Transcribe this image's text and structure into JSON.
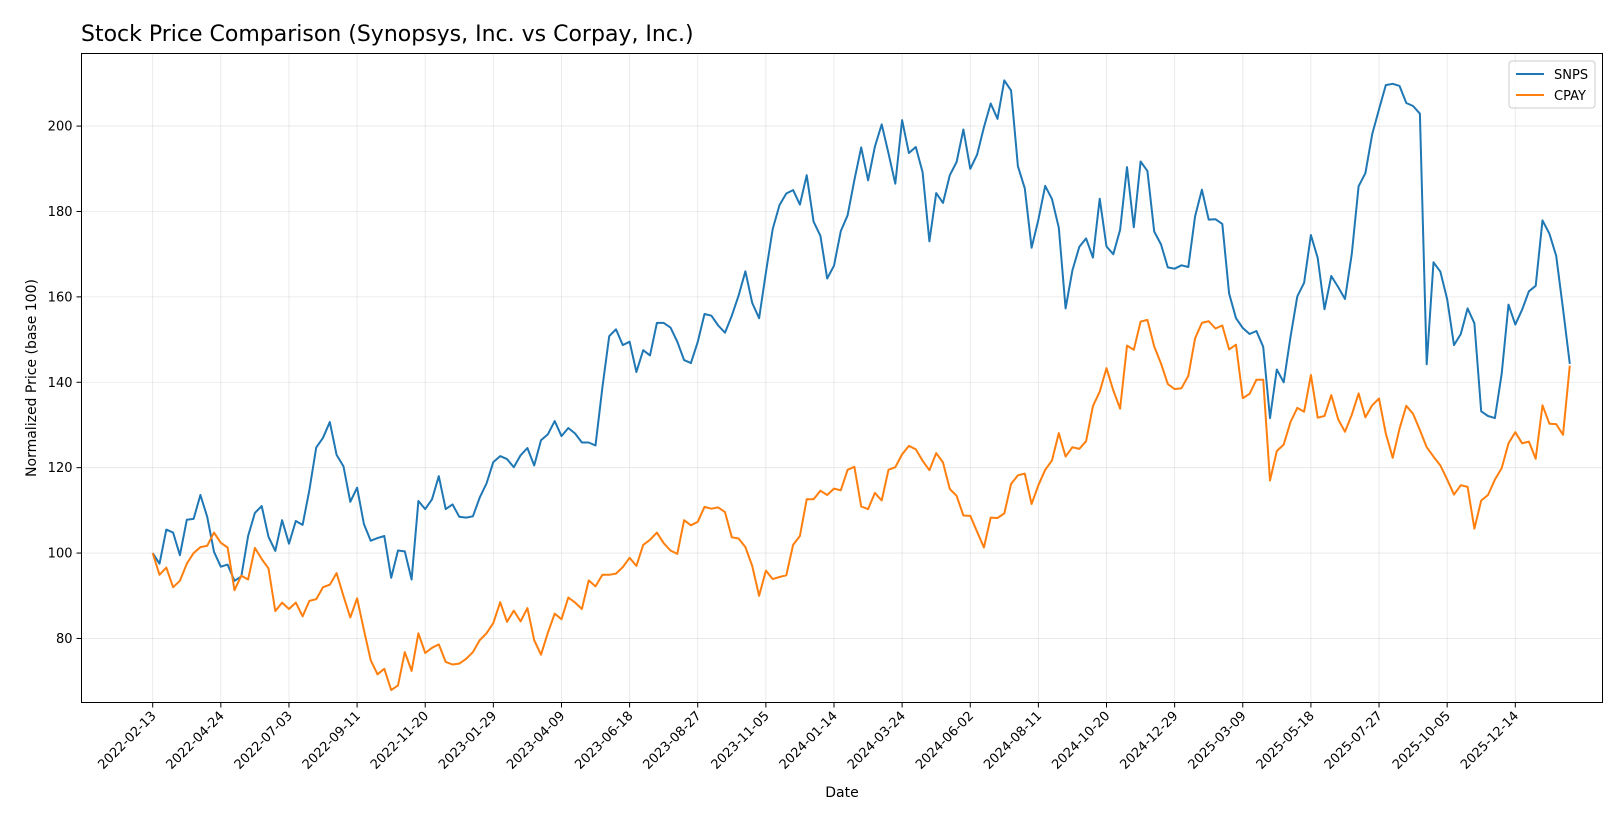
{
  "chart_data": {
    "type": "line",
    "title": "Stock Price Comparison (Synopsys, Inc. vs Corpay, Inc.)",
    "xlabel": "Date",
    "ylabel": "Normalized Price (base 100)",
    "x_ticks": [
      "2022-02-13",
      "2022-04-24",
      "2022-07-03",
      "2022-09-11",
      "2022-11-20",
      "2023-01-29",
      "2023-04-09",
      "2023-06-18",
      "2023-08-27",
      "2023-11-05",
      "2024-01-14",
      "2024-03-24",
      "2024-06-02",
      "2024-08-11",
      "2024-10-20",
      "2024-12-29",
      "2025-03-09",
      "2025-05-18",
      "2025-07-27",
      "2025-10-05",
      "2025-12-14"
    ],
    "y_ticks": [
      80,
      100,
      120,
      140,
      160,
      180,
      200
    ],
    "ylim": [
      65,
      217
    ],
    "x_range_weeks": [
      -10.45,
      212.8
    ],
    "grid": true,
    "legend_position": "top-right",
    "colors": {
      "SNPS": "#1f77b4",
      "CPAY": "#ff7f0e"
    },
    "series": [
      {
        "name": "SNPS",
        "color": "#1f77b4",
        "values": [
          100,
          97.5,
          105.5,
          104.8,
          99.5,
          107.8,
          108.0,
          113.6,
          108.5,
          100.3,
          96.8,
          97.3,
          93.5,
          94.5,
          104.0,
          109.4,
          111.0,
          103.8,
          100.5,
          107.7,
          102.2,
          107.5,
          106.6,
          114.8,
          124.7,
          127.0,
          130.7,
          123.0,
          120.3,
          112.0,
          115.3,
          106.8,
          102.9,
          103.5,
          104.0,
          94.2,
          100.6,
          100.4,
          93.8,
          112.2,
          110.3,
          112.6,
          118.0,
          110.3,
          111.4,
          108.5,
          108.3,
          108.6,
          113.0,
          116.3,
          121.3,
          122.7,
          122.0,
          120.1,
          122.9,
          124.6,
          120.5,
          126.4,
          127.8,
          130.9,
          127.4,
          129.3,
          128.0,
          125.9,
          125.9,
          125.2,
          138.8,
          150.8,
          152.4,
          148.7,
          149.5,
          142.4,
          147.5,
          146.3,
          153.9,
          153.9,
          152.8,
          149.5,
          145.2,
          144.5,
          149.4,
          156.0,
          155.6,
          153.3,
          151.6,
          155.6,
          160.3,
          166.0,
          158.6,
          155.0,
          165.7,
          175.9,
          181.5,
          184.2,
          185.0,
          181.6,
          188.5,
          177.6,
          174.3,
          164.3,
          167.3,
          175.4,
          179.1,
          187.4,
          195.0,
          187.3,
          195.2,
          200.4,
          193.6,
          186.5,
          201.4,
          193.7,
          195.1,
          189.2,
          173.0,
          184.3,
          182.0,
          188.5,
          191.6,
          199.2,
          190.0,
          193.3,
          199.7,
          205.3,
          201.7,
          210.7,
          208.3,
          190.6,
          185.4,
          171.5,
          178.1,
          186.0,
          182.9,
          176.2,
          157.3,
          166.2,
          171.7,
          173.7,
          169.2,
          183.0,
          171.8,
          170.0,
          175.7,
          190.4,
          176.3,
          191.7,
          189.5,
          175.3,
          172.3,
          166.9,
          166.6,
          167.4,
          167.0,
          178.9,
          185.1,
          178.1,
          178.2,
          177.1,
          160.8,
          155.0,
          152.7,
          151.3,
          152.0,
          148.3,
          131.6,
          143.0,
          140.0,
          150.6,
          160.1,
          163.3,
          174.5,
          169.1,
          157.1,
          164.9,
          162.3,
          159.5,
          170.1,
          185.9,
          189.0,
          198.1,
          203.9,
          209.6,
          209.9,
          209.4,
          205.4,
          204.7,
          202.9,
          144.2,
          168.1,
          165.9,
          159.4,
          148.7,
          151.3,
          157.3,
          153.8,
          133.2,
          132.1,
          131.6,
          142.0,
          158.2,
          153.5,
          157.0,
          161.3,
          162.6,
          177.9,
          174.8,
          169.6,
          157.2,
          144.3
        ]
      },
      {
        "name": "CPAY",
        "color": "#ff7f0e",
        "values": [
          100,
          94.9,
          96.6,
          92.0,
          93.5,
          97.5,
          100.0,
          101.4,
          101.7,
          104.8,
          102.4,
          101.3,
          91.3,
          94.7,
          93.8,
          101.2,
          98.6,
          96.4,
          86.4,
          88.4,
          86.9,
          88.4,
          85.2,
          88.8,
          89.2,
          92.0,
          92.6,
          95.3,
          89.9,
          84.9,
          89.4,
          82.0,
          74.9,
          71.6,
          72.9,
          67.9,
          69.0,
          76.8,
          72.4,
          81.2,
          76.6,
          77.8,
          78.6,
          74.5,
          73.9,
          74.1,
          75.2,
          76.8,
          79.6,
          81.2,
          83.6,
          88.5,
          83.9,
          86.5,
          84.0,
          87.1,
          79.6,
          76.2,
          81.3,
          85.8,
          84.5,
          89.6,
          88.4,
          86.9,
          93.6,
          92.2,
          94.9,
          94.9,
          95.2,
          96.7,
          98.9,
          97.0,
          101.9,
          103.1,
          104.8,
          102.3,
          100.6,
          99.8,
          107.7,
          106.5,
          107.3,
          110.8,
          110.4,
          110.7,
          109.6,
          103.7,
          103.4,
          101.4,
          97.0,
          90.0,
          95.9,
          93.9,
          94.4,
          94.8,
          101.9,
          104.0,
          112.6,
          112.6,
          114.6,
          113.6,
          115.1,
          114.7,
          119.5,
          120.2,
          110.9,
          110.3,
          114.1,
          112.3,
          119.5,
          120.1,
          123.1,
          125.1,
          124.3,
          121.6,
          119.4,
          123.4,
          121.2,
          115.0,
          113.4,
          108.8,
          108.7,
          105.0,
          101.3,
          108.3,
          108.2,
          109.3,
          116.2,
          118.2,
          118.6,
          111.5,
          115.9,
          119.5,
          121.7,
          128.1,
          122.6,
          124.8,
          124.4,
          126.2,
          134.4,
          137.8,
          143.3,
          138.1,
          133.8,
          148.6,
          147.6,
          154.2,
          154.6,
          148.4,
          144.4,
          139.6,
          138.4,
          138.6,
          141.5,
          150.3,
          153.9,
          154.3,
          152.6,
          153.3,
          147.7,
          148.8,
          136.3,
          137.3,
          140.6,
          140.6,
          117.0,
          123.9,
          125.4,
          130.7,
          134.0,
          133.1,
          141.7,
          131.7,
          132.1,
          137.0,
          131.3,
          128.4,
          132.4,
          137.4,
          131.8,
          134.6,
          136.2,
          128.0,
          122.3,
          129.1,
          134.5,
          132.6,
          128.8,
          124.8,
          122.6,
          120.5,
          117.2,
          113.7,
          115.9,
          115.5,
          105.7,
          112.3,
          113.6,
          117.2,
          119.9,
          125.7,
          128.3,
          125.7,
          126.1,
          122.1,
          134.6,
          130.3,
          130.2,
          127.7,
          143.9
        ]
      }
    ]
  }
}
